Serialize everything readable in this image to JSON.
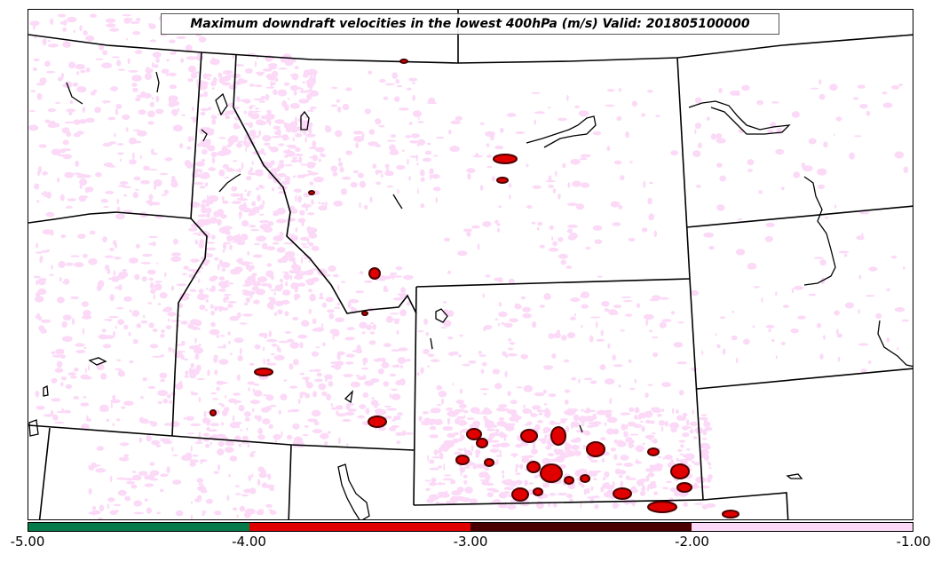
{
  "map": {
    "title": "Maximum downdraft velocities in the lowest 400hPa (m/s) Valid: 201805100000",
    "colorbar": {
      "segments": [
        {
          "min": -5.0,
          "max": -4.0,
          "color": "#057a4a"
        },
        {
          "min": -4.0,
          "max": -3.0,
          "color": "#e00000"
        },
        {
          "min": -3.0,
          "max": -2.0,
          "color": "#4a0000"
        },
        {
          "min": -2.0,
          "max": -1.0,
          "color": "#fbd9f7"
        }
      ],
      "tick_labels": [
        "-5.00",
        "-4.00",
        "-3.00",
        "-2.00",
        "-1.00"
      ]
    },
    "colors": {
      "light_field": "#fbd9f7",
      "moderate": "#4a0000",
      "strong": "#e00000",
      "borders": "#000000"
    }
  }
}
